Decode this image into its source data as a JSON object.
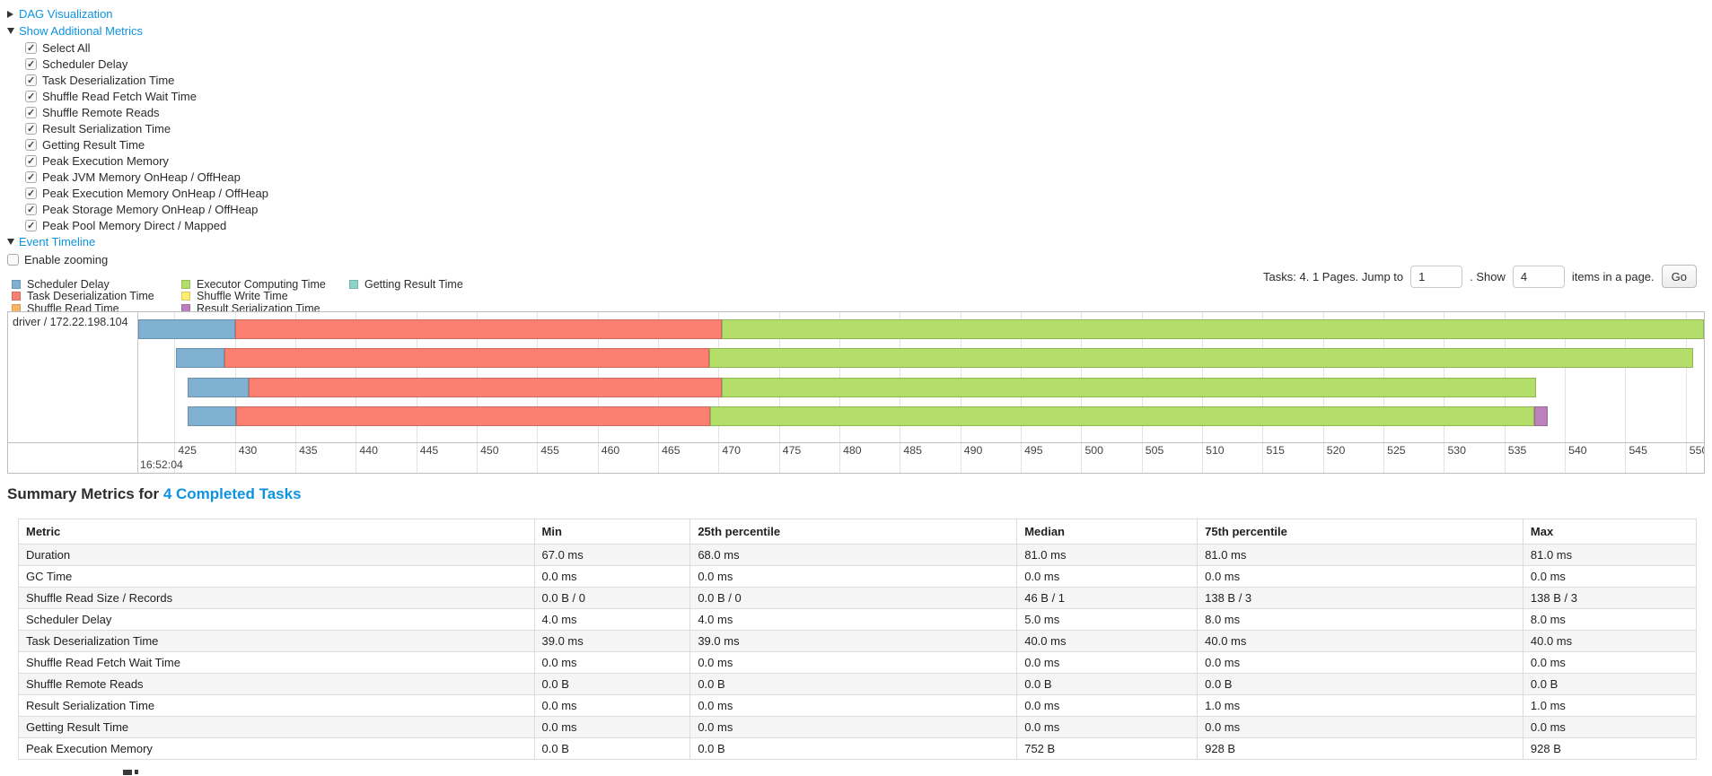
{
  "controls": {
    "dag_label": "DAG Visualization",
    "metrics_label": "Show Additional Metrics",
    "metric_checkboxes": [
      {
        "label": "Select All",
        "checked": true
      },
      {
        "label": "Scheduler Delay",
        "checked": true
      },
      {
        "label": "Task Deserialization Time",
        "checked": true
      },
      {
        "label": "Shuffle Read Fetch Wait Time",
        "checked": true
      },
      {
        "label": "Shuffle Remote Reads",
        "checked": true
      },
      {
        "label": "Result Serialization Time",
        "checked": true
      },
      {
        "label": "Getting Result Time",
        "checked": true
      },
      {
        "label": "Peak Execution Memory",
        "checked": true
      },
      {
        "label": "Peak JVM Memory OnHeap / OffHeap",
        "checked": true
      },
      {
        "label": "Peak Execution Memory OnHeap / OffHeap",
        "checked": true
      },
      {
        "label": "Peak Storage Memory OnHeap / OffHeap",
        "checked": true
      },
      {
        "label": "Peak Pool Memory Direct / Mapped",
        "checked": true
      }
    ],
    "event_timeline_label": "Event Timeline",
    "enable_zooming": {
      "label": "Enable zooming",
      "checked": false
    }
  },
  "pagination": {
    "prefix": "Tasks: 4. 1 Pages. Jump to",
    "jump_value": "1",
    "mid": ". Show",
    "show_value": "4",
    "suffix": "items in a page.",
    "go_label": "Go"
  },
  "chart_data": {
    "type": "timeline",
    "title": "Event Timeline",
    "group_label": "driver / 172.22.198.104",
    "axis": {
      "min": 422.0,
      "max": 551.5,
      "tick_step": 5,
      "ticks": [
        425,
        430,
        435,
        440,
        445,
        450,
        455,
        460,
        465,
        470,
        475,
        480,
        485,
        490,
        495,
        500,
        505,
        510,
        515,
        520,
        525,
        530,
        535,
        540,
        545,
        550
      ],
      "major_label": "16:52:04"
    },
    "colors": {
      "scheduler_delay": "#80B1D3",
      "task_deserialization": "#FB8072",
      "shuffle_read": "#FDB462",
      "executor_computing": "#B3DE69",
      "shuffle_write": "#FFED6F",
      "result_serialization": "#BC80BD",
      "getting_result": "#8DD3C7"
    },
    "legend_columns": [
      [
        {
          "name": "scheduler_delay",
          "label": "Scheduler Delay"
        },
        {
          "name": "task_deserialization",
          "label": "Task Deserialization Time"
        },
        {
          "name": "shuffle_read",
          "label": "Shuffle Read Time"
        }
      ],
      [
        {
          "name": "executor_computing",
          "label": "Executor Computing Time"
        },
        {
          "name": "shuffle_write",
          "label": "Shuffle Write Time"
        },
        {
          "name": "result_serialization",
          "label": "Result Serialization Time"
        }
      ],
      [
        {
          "name": "getting_result",
          "label": "Getting Result Time"
        }
      ]
    ],
    "tasks": [
      {
        "segments": [
          {
            "name": "scheduler_delay",
            "start": 422.0,
            "end": 430.0
          },
          {
            "name": "task_deserialization",
            "start": 430.0,
            "end": 470.3
          },
          {
            "name": "executor_computing",
            "start": 470.3,
            "end": 551.5
          }
        ]
      },
      {
        "segments": [
          {
            "name": "scheduler_delay",
            "start": 425.1,
            "end": 429.1
          },
          {
            "name": "task_deserialization",
            "start": 429.1,
            "end": 469.2
          },
          {
            "name": "executor_computing",
            "start": 469.2,
            "end": 550.6
          }
        ]
      },
      {
        "segments": [
          {
            "name": "scheduler_delay",
            "start": 426.1,
            "end": 431.1
          },
          {
            "name": "task_deserialization",
            "start": 431.1,
            "end": 470.3
          },
          {
            "name": "executor_computing",
            "start": 470.3,
            "end": 537.6
          }
        ]
      },
      {
        "segments": [
          {
            "name": "scheduler_delay",
            "start": 426.1,
            "end": 430.1
          },
          {
            "name": "task_deserialization",
            "start": 430.1,
            "end": 469.3
          },
          {
            "name": "executor_computing",
            "start": 469.3,
            "end": 537.5
          },
          {
            "name": "result_serialization",
            "start": 537.5,
            "end": 538.6
          }
        ]
      }
    ]
  },
  "summary": {
    "heading_prefix": "Summary Metrics for ",
    "heading_link": "4 Completed Tasks",
    "table": {
      "columns": [
        "Metric",
        "Min",
        "25th percentile",
        "Median",
        "75th percentile",
        "Max"
      ],
      "rows": [
        [
          "Duration",
          "67.0 ms",
          "68.0 ms",
          "81.0 ms",
          "81.0 ms",
          "81.0 ms"
        ],
        [
          "GC Time",
          "0.0 ms",
          "0.0 ms",
          "0.0 ms",
          "0.0 ms",
          "0.0 ms"
        ],
        [
          "Shuffle Read Size / Records",
          "0.0 B / 0",
          "0.0 B / 0",
          "46 B / 1",
          "138 B / 3",
          "138 B / 3"
        ],
        [
          "Scheduler Delay",
          "4.0 ms",
          "4.0 ms",
          "5.0 ms",
          "8.0 ms",
          "8.0 ms"
        ],
        [
          "Task Deserialization Time",
          "39.0 ms",
          "39.0 ms",
          "40.0 ms",
          "40.0 ms",
          "40.0 ms"
        ],
        [
          "Shuffle Read Fetch Wait Time",
          "0.0 ms",
          "0.0 ms",
          "0.0 ms",
          "0.0 ms",
          "0.0 ms"
        ],
        [
          "Shuffle Remote Reads",
          "0.0 B",
          "0.0 B",
          "0.0 B",
          "0.0 B",
          "0.0 B"
        ],
        [
          "Result Serialization Time",
          "0.0 ms",
          "0.0 ms",
          "0.0 ms",
          "1.0 ms",
          "1.0 ms"
        ],
        [
          "Getting Result Time",
          "0.0 ms",
          "0.0 ms",
          "0.0 ms",
          "0.0 ms",
          "0.0 ms"
        ],
        [
          "Peak Execution Memory",
          "0.0 B",
          "0.0 B",
          "752 B",
          "928 B",
          "928 B"
        ]
      ]
    }
  }
}
